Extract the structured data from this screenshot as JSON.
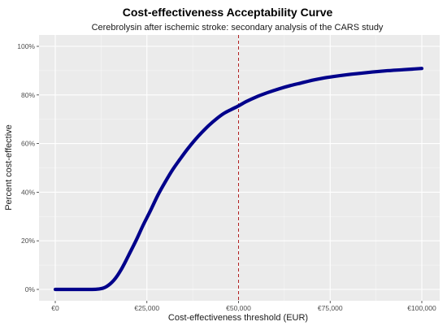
{
  "colors": {
    "panel_background": "#ebebeb",
    "grid_major": "#ffffff",
    "curve": "#00008b",
    "threshold_line": "#b22222"
  },
  "chart_data": {
    "type": "line",
    "title": "Cost-effectiveness Acceptability Curve",
    "subtitle": "Cerebrolysin after ischemic stroke: secondary analysis of the CARS study",
    "xlabel": "Cost-effectiveness threshold (EUR)",
    "ylabel": "Percent cost-effective",
    "xlim": [
      0,
      100000
    ],
    "ylim": [
      0,
      100
    ],
    "x_ticks": [
      0,
      25000,
      50000,
      75000,
      100000
    ],
    "x_tick_labels": [
      "€0",
      "€25,000",
      "€50,000",
      "€75,000",
      "€100,000"
    ],
    "y_ticks": [
      0,
      20,
      40,
      60,
      80,
      100
    ],
    "y_tick_labels": [
      "0%",
      "20%",
      "40%",
      "60%",
      "80%",
      "100%"
    ],
    "grid": true,
    "reference_line": {
      "x": 50000,
      "style": "dashed"
    },
    "series": [
      {
        "x": [
          0,
          5000,
          10000,
          12000,
          13000,
          14000,
          15000,
          16000,
          17000,
          18000,
          19000,
          20000,
          22000,
          24000,
          26000,
          28000,
          30000,
          32000,
          34000,
          36000,
          38000,
          40000,
          42000,
          44000,
          46000,
          48000,
          50000,
          52000,
          55000,
          58000,
          61000,
          64000,
          67000,
          70000,
          73000,
          76000,
          80000,
          85000,
          90000,
          95000,
          100000
        ],
        "y": [
          0,
          0,
          0,
          0.2,
          0.5,
          1.2,
          2.3,
          3.8,
          5.8,
          8.2,
          11.0,
          14.0,
          20.0,
          26.5,
          32.5,
          38.8,
          44.2,
          49.2,
          53.5,
          57.6,
          61.3,
          64.6,
          67.6,
          70.2,
          72.4,
          74.0,
          75.5,
          77.2,
          79.3,
          81.0,
          82.5,
          83.8,
          84.9,
          86.0,
          86.9,
          87.6,
          88.4,
          89.2,
          89.9,
          90.4,
          90.9
        ]
      }
    ]
  }
}
